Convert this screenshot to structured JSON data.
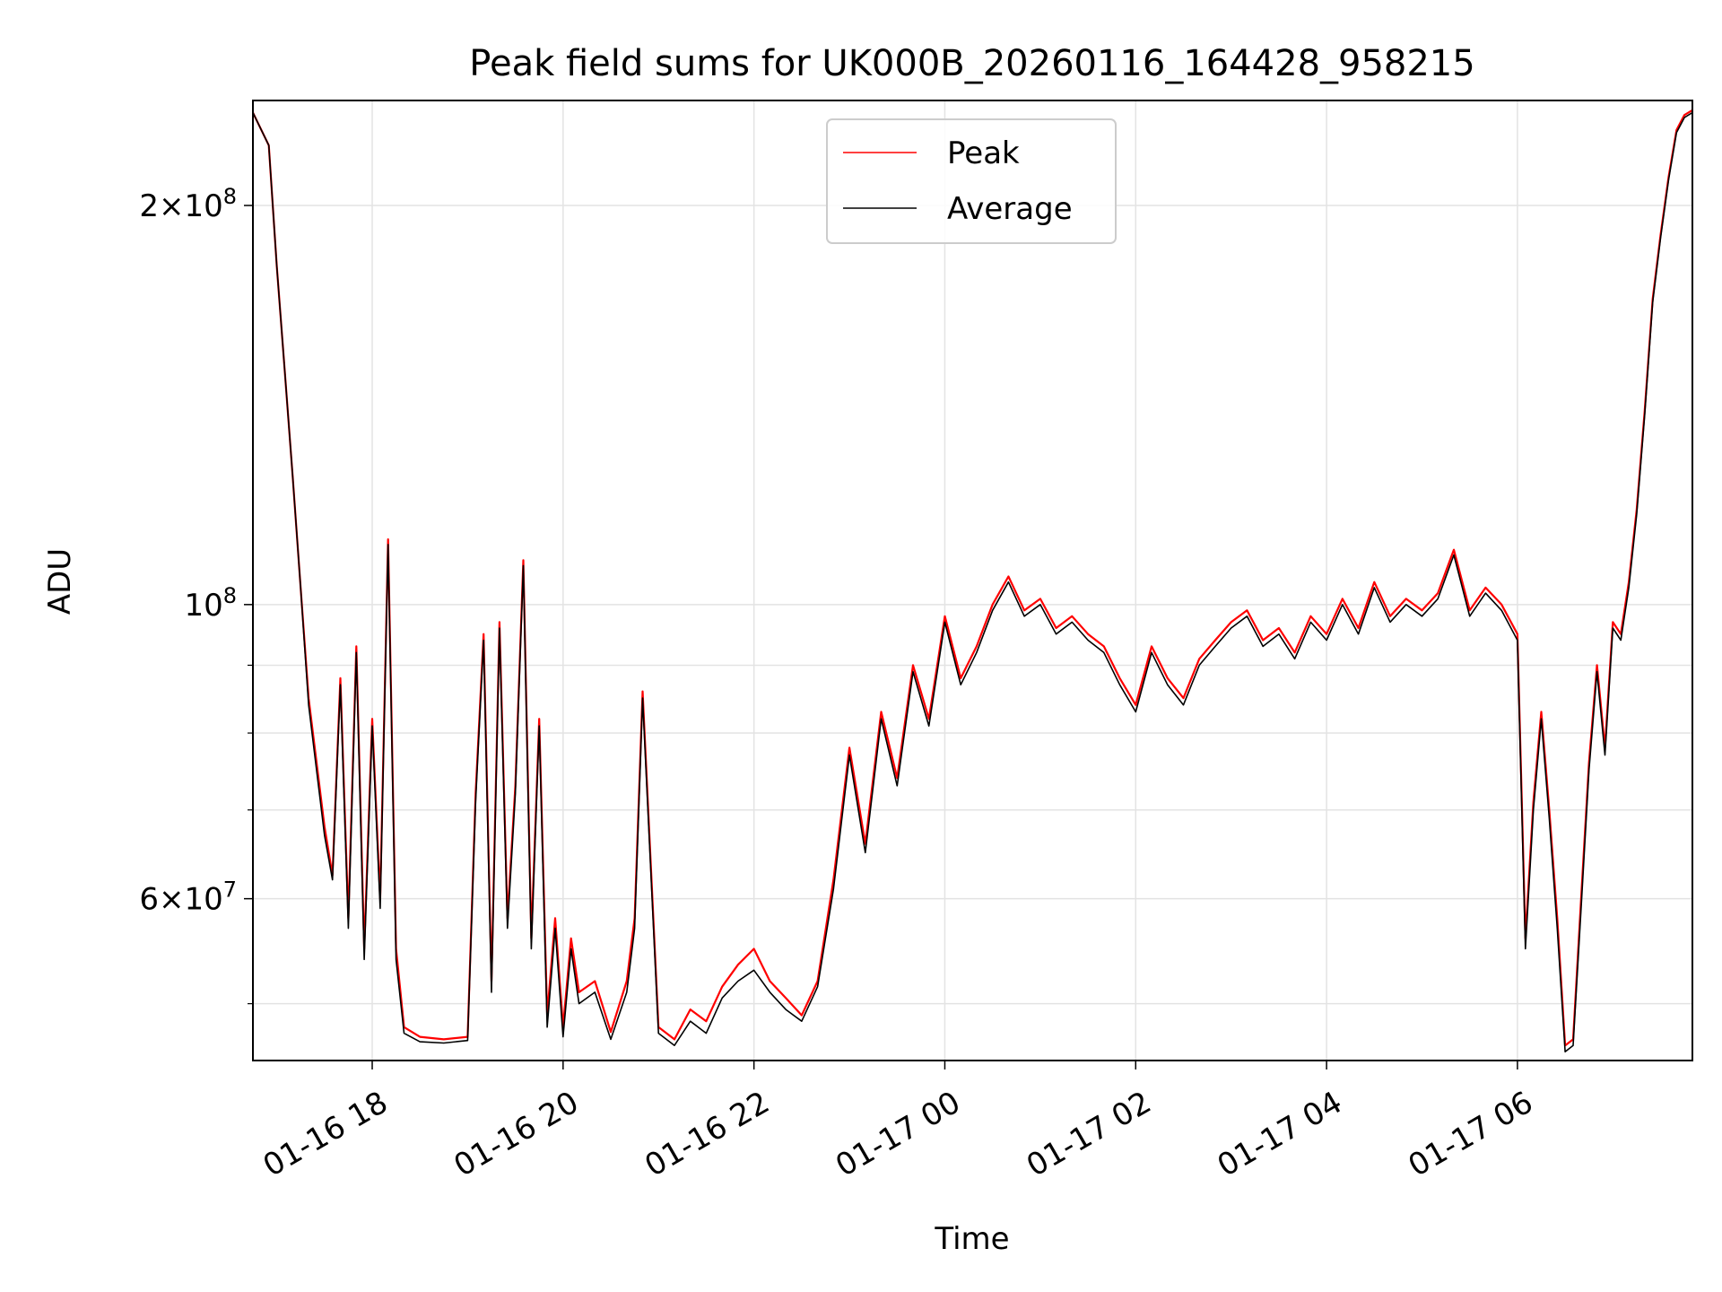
{
  "chart_data": {
    "type": "line",
    "title": "Peak field sums for UK000B_20260116_164428_958215",
    "xlabel": "Time",
    "ylabel": "ADU",
    "y_scale": "log",
    "ylim": [
      45300000,
      240000000
    ],
    "xlim": [
      "01-16 16:45",
      "01-17 07:50"
    ],
    "x_ticks": [
      "01-16 18",
      "01-16 20",
      "01-16 22",
      "01-17 00",
      "01-17 02",
      "01-17 04",
      "01-17 06"
    ],
    "y_ticks": [
      {
        "value": 60000000,
        "label_mantissa": "6",
        "label_exp": "7"
      },
      {
        "value": 100000000,
        "label_mantissa": "",
        "label_exp": "8"
      },
      {
        "value": 200000000,
        "label_mantissa": "2",
        "label_exp": "8"
      }
    ],
    "y_minor_ticks": [
      50000000,
      70000000,
      80000000,
      90000000
    ],
    "grid": true,
    "legend_position": "top-center",
    "series": [
      {
        "name": "Peak",
        "color": "#ff0000",
        "x": [
          "01-16 16:45",
          "01-16 16:55",
          "01-16 17:00",
          "01-16 17:05",
          "01-16 17:10",
          "01-16 17:15",
          "01-16 17:20",
          "01-16 17:30",
          "01-16 17:35",
          "01-16 17:40",
          "01-16 17:45",
          "01-16 17:50",
          "01-16 17:55",
          "01-16 18:00",
          "01-16 18:05",
          "01-16 18:10",
          "01-16 18:15",
          "01-16 18:20",
          "01-16 18:30",
          "01-16 18:45",
          "01-16 19:00",
          "01-16 19:05",
          "01-16 19:10",
          "01-16 19:15",
          "01-16 19:20",
          "01-16 19:25",
          "01-16 19:30",
          "01-16 19:35",
          "01-16 19:40",
          "01-16 19:45",
          "01-16 19:50",
          "01-16 19:55",
          "01-16 20:00",
          "01-16 20:05",
          "01-16 20:10",
          "01-16 20:20",
          "01-16 20:30",
          "01-16 20:40",
          "01-16 20:45",
          "01-16 20:50",
          "01-16 21:00",
          "01-16 21:10",
          "01-16 21:20",
          "01-16 21:30",
          "01-16 21:40",
          "01-16 21:50",
          "01-16 22:00",
          "01-16 22:10",
          "01-16 22:20",
          "01-16 22:30",
          "01-16 22:40",
          "01-16 22:50",
          "01-16 23:00",
          "01-16 23:10",
          "01-16 23:20",
          "01-16 23:30",
          "01-16 23:40",
          "01-16 23:50",
          "01-17 00:00",
          "01-17 00:10",
          "01-17 00:20",
          "01-17 00:30",
          "01-17 00:40",
          "01-17 00:50",
          "01-17 01:00",
          "01-17 01:10",
          "01-17 01:20",
          "01-17 01:30",
          "01-17 01:40",
          "01-17 01:50",
          "01-17 02:00",
          "01-17 02:10",
          "01-17 02:20",
          "01-17 02:30",
          "01-17 02:40",
          "01-17 02:50",
          "01-17 03:00",
          "01-17 03:10",
          "01-17 03:20",
          "01-17 03:30",
          "01-17 03:40",
          "01-17 03:50",
          "01-17 04:00",
          "01-17 04:10",
          "01-17 04:20",
          "01-17 04:30",
          "01-17 04:40",
          "01-17 04:50",
          "01-17 05:00",
          "01-17 05:10",
          "01-17 05:20",
          "01-17 05:30",
          "01-17 05:40",
          "01-17 05:50",
          "01-17 06:00",
          "01-17 06:05",
          "01-17 06:10",
          "01-17 06:15",
          "01-17 06:20",
          "01-17 06:25",
          "01-17 06:30",
          "01-17 06:35",
          "01-17 06:40",
          "01-17 06:45",
          "01-17 06:50",
          "01-17 06:55",
          "01-17 07:00",
          "01-17 07:05",
          "01-17 07:10",
          "01-17 07:15",
          "01-17 07:20",
          "01-17 07:25",
          "01-17 07:30",
          "01-17 07:35",
          "01-17 07:40",
          "01-17 07:45",
          "01-17 07:50"
        ],
        "values": [
          235000000,
          222000000,
          180000000,
          150000000,
          125000000,
          103000000,
          85000000,
          68000000,
          62500000,
          88000000,
          58000000,
          93000000,
          55000000,
          82000000,
          60000000,
          112000000,
          55000000,
          48000000,
          47200000,
          47000000,
          47200000,
          72000000,
          95000000,
          52000000,
          97000000,
          58000000,
          73000000,
          108000000,
          56000000,
          82000000,
          49000000,
          58000000,
          48000000,
          56000000,
          51000000,
          52000000,
          47600000,
          52000000,
          58000000,
          86000000,
          48000000,
          47000000,
          49500000,
          48500000,
          51500000,
          53500000,
          55000000,
          52000000,
          50500000,
          49000000,
          52000000,
          62000000,
          78000000,
          66000000,
          83000000,
          74000000,
          90000000,
          82000000,
          98000000,
          88000000,
          93000000,
          100000000,
          105000000,
          99000000,
          101000000,
          96000000,
          98000000,
          95000000,
          93000000,
          88000000,
          84000000,
          93000000,
          88000000,
          85000000,
          91000000,
          94000000,
          97000000,
          99000000,
          94000000,
          96000000,
          92000000,
          98000000,
          95000000,
          101000000,
          96000000,
          104000000,
          98000000,
          101000000,
          99000000,
          102000000,
          110000000,
          99000000,
          103000000,
          100000000,
          95000000,
          56000000,
          71000000,
          83000000,
          70000000,
          58000000,
          46500000,
          47000000,
          60000000,
          76000000,
          90000000,
          78000000,
          97000000,
          95000000,
          104000000,
          118000000,
          140000000,
          170000000,
          190000000,
          210000000,
          228000000,
          234000000,
          236000000
        ]
      },
      {
        "name": "Average",
        "color": "#000000",
        "x": [
          "01-16 16:45",
          "01-16 16:55",
          "01-16 17:00",
          "01-16 17:05",
          "01-16 17:10",
          "01-16 17:15",
          "01-16 17:20",
          "01-16 17:30",
          "01-16 17:35",
          "01-16 17:40",
          "01-16 17:45",
          "01-16 17:50",
          "01-16 17:55",
          "01-16 18:00",
          "01-16 18:05",
          "01-16 18:10",
          "01-16 18:15",
          "01-16 18:20",
          "01-16 18:30",
          "01-16 18:45",
          "01-16 19:00",
          "01-16 19:05",
          "01-16 19:10",
          "01-16 19:15",
          "01-16 19:20",
          "01-16 19:25",
          "01-16 19:30",
          "01-16 19:35",
          "01-16 19:40",
          "01-16 19:45",
          "01-16 19:50",
          "01-16 19:55",
          "01-16 20:00",
          "01-16 20:05",
          "01-16 20:10",
          "01-16 20:20",
          "01-16 20:30",
          "01-16 20:40",
          "01-16 20:45",
          "01-16 20:50",
          "01-16 21:00",
          "01-16 21:10",
          "01-16 21:20",
          "01-16 21:30",
          "01-16 21:40",
          "01-16 21:50",
          "01-16 22:00",
          "01-16 22:10",
          "01-16 22:20",
          "01-16 22:30",
          "01-16 22:40",
          "01-16 22:50",
          "01-16 23:00",
          "01-16 23:10",
          "01-16 23:20",
          "01-16 23:30",
          "01-16 23:40",
          "01-16 23:50",
          "01-17 00:00",
          "01-17 00:10",
          "01-17 00:20",
          "01-17 00:30",
          "01-17 00:40",
          "01-17 00:50",
          "01-17 01:00",
          "01-17 01:10",
          "01-17 01:20",
          "01-17 01:30",
          "01-17 01:40",
          "01-17 01:50",
          "01-17 02:00",
          "01-17 02:10",
          "01-17 02:20",
          "01-17 02:30",
          "01-17 02:40",
          "01-17 02:50",
          "01-17 03:00",
          "01-17 03:10",
          "01-17 03:20",
          "01-17 03:30",
          "01-17 03:40",
          "01-17 03:50",
          "01-17 04:00",
          "01-17 04:10",
          "01-17 04:20",
          "01-17 04:30",
          "01-17 04:40",
          "01-17 04:50",
          "01-17 05:00",
          "01-17 05:10",
          "01-17 05:20",
          "01-17 05:30",
          "01-17 05:40",
          "01-17 05:50",
          "01-17 06:00",
          "01-17 06:05",
          "01-17 06:10",
          "01-17 06:15",
          "01-17 06:20",
          "01-17 06:25",
          "01-17 06:30",
          "01-17 06:35",
          "01-17 06:40",
          "01-17 06:45",
          "01-17 06:50",
          "01-17 06:55",
          "01-17 07:00",
          "01-17 07:05",
          "01-17 07:10",
          "01-17 07:15",
          "01-17 07:20",
          "01-17 07:25",
          "01-17 07:30",
          "01-17 07:35",
          "01-17 07:40",
          "01-17 07:45",
          "01-17 07:50"
        ],
        "values": [
          235000000,
          222000000,
          180000000,
          150000000,
          125000000,
          103000000,
          84000000,
          67000000,
          62000000,
          87000000,
          57000000,
          92000000,
          54000000,
          81000000,
          59000000,
          111000000,
          54000000,
          47500000,
          46800000,
          46700000,
          46900000,
          71000000,
          94000000,
          51000000,
          96000000,
          57000000,
          72000000,
          107000000,
          55000000,
          81000000,
          48000000,
          57000000,
          47200000,
          55000000,
          50000000,
          51000000,
          47000000,
          51000000,
          57000000,
          85000000,
          47500000,
          46500000,
          48500000,
          47500000,
          50500000,
          52000000,
          53000000,
          51000000,
          49500000,
          48500000,
          51500000,
          61000000,
          77000000,
          65000000,
          82000000,
          73000000,
          89000000,
          81000000,
          97000000,
          87000000,
          92000000,
          99000000,
          104000000,
          98000000,
          100000000,
          95000000,
          97000000,
          94000000,
          92000000,
          87000000,
          83000000,
          92000000,
          87000000,
          84000000,
          90000000,
          93000000,
          96000000,
          98000000,
          93000000,
          95000000,
          91000000,
          97000000,
          94000000,
          100000000,
          95000000,
          103000000,
          97000000,
          100000000,
          98000000,
          101000000,
          109000000,
          98000000,
          102000000,
          99000000,
          94000000,
          55000000,
          70000000,
          82000000,
          69000000,
          57000000,
          46000000,
          46500000,
          59000000,
          75000000,
          89000000,
          77000000,
          96000000,
          94000000,
          103000000,
          117000000,
          139000000,
          169000000,
          189000000,
          209000000,
          227000000,
          233000000,
          235000000
        ]
      }
    ]
  }
}
